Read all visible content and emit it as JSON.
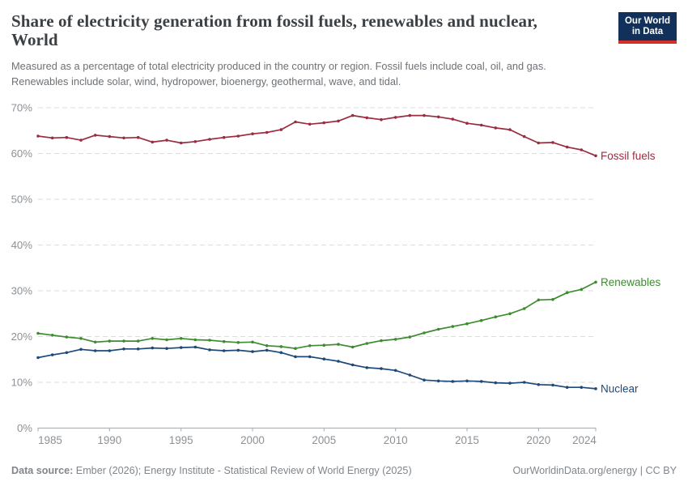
{
  "header": {
    "title": "Share of electricity generation from fossil fuels, renewables and nuclear, World",
    "title_lines": [
      "Share of electricity generation from fossil fuels, renewables and nuclear,",
      "World"
    ],
    "subtitle_lines": [
      "Measured as a percentage of total electricity produced in the country or region. Fossil fuels include coal, oil, and gas.",
      "Renewables include solar, wind, hydropower, bioenergy, geothermal, wave, and tidal."
    ],
    "logo": {
      "line1": "Our World",
      "line2": "in Data"
    }
  },
  "footer": {
    "source_label": "Data source:",
    "source_text": " Ember (2026); Energy Institute - Statistical Review of World Energy (2025)",
    "credit": "OurWorldinData.org/energy | CC BY"
  },
  "colors": {
    "logo_navy": "#12315a",
    "logo_red": "#d2312a",
    "title_text": "#3b4045",
    "subtitle_text": "#6d7175",
    "footer_text": "#81868b",
    "grid": "#dadcde",
    "axis": "#a7aaad",
    "tick_label": "#8c9196"
  },
  "chart_data": {
    "type": "line",
    "title": "Share of electricity generation from fossil fuels, renewables and nuclear, World",
    "xlabel": "",
    "ylabel": "",
    "ylim": [
      0,
      70
    ],
    "yticks": [
      0,
      10,
      20,
      30,
      40,
      50,
      60,
      70
    ],
    "ytick_suffix": "%",
    "xticks": [
      1985,
      1990,
      1995,
      2000,
      2005,
      2010,
      2015,
      2020,
      2024
    ],
    "grid": "horizontal-dashed",
    "legend_position": "line-end-labels",
    "x": [
      1985,
      1986,
      1987,
      1988,
      1989,
      1990,
      1991,
      1992,
      1993,
      1994,
      1995,
      1996,
      1997,
      1998,
      1999,
      2000,
      2001,
      2002,
      2003,
      2004,
      2005,
      2006,
      2007,
      2008,
      2009,
      2010,
      2011,
      2012,
      2013,
      2014,
      2015,
      2016,
      2017,
      2018,
      2019,
      2020,
      2021,
      2022,
      2023,
      2024
    ],
    "series": [
      {
        "name": "Fossil fuels",
        "color": "#9a2d3f",
        "values": [
          63.8,
          63.4,
          63.5,
          62.9,
          64.0,
          63.7,
          63.4,
          63.5,
          62.5,
          62.9,
          62.3,
          62.6,
          63.1,
          63.5,
          63.8,
          64.3,
          64.6,
          65.2,
          66.9,
          66.4,
          66.7,
          67.1,
          68.3,
          67.8,
          67.4,
          67.9,
          68.3,
          68.3,
          68.0,
          67.5,
          66.6,
          66.2,
          65.6,
          65.2,
          63.7,
          62.3,
          62.4,
          61.4,
          60.8,
          59.5
        ]
      },
      {
        "name": "Renewables",
        "color": "#3d8c2f",
        "values": [
          20.7,
          20.3,
          19.9,
          19.6,
          18.8,
          19.0,
          19.0,
          19.0,
          19.6,
          19.3,
          19.6,
          19.3,
          19.2,
          18.9,
          18.7,
          18.8,
          18.0,
          17.8,
          17.4,
          18.0,
          18.1,
          18.3,
          17.7,
          18.5,
          19.1,
          19.4,
          19.9,
          20.8,
          21.6,
          22.2,
          22.8,
          23.5,
          24.3,
          25.0,
          26.1,
          28.0,
          28.1,
          29.6,
          30.3,
          31.9
        ]
      },
      {
        "name": "Nuclear",
        "color": "#1e4a78",
        "values": [
          15.4,
          16.0,
          16.5,
          17.2,
          16.9,
          16.9,
          17.3,
          17.3,
          17.5,
          17.4,
          17.6,
          17.7,
          17.1,
          16.9,
          17.0,
          16.7,
          17.0,
          16.5,
          15.6,
          15.6,
          15.1,
          14.6,
          13.8,
          13.2,
          13.0,
          12.6,
          11.6,
          10.5,
          10.3,
          10.2,
          10.3,
          10.2,
          9.9,
          9.8,
          10.0,
          9.5,
          9.4,
          8.9,
          8.9,
          8.6
        ]
      }
    ]
  }
}
